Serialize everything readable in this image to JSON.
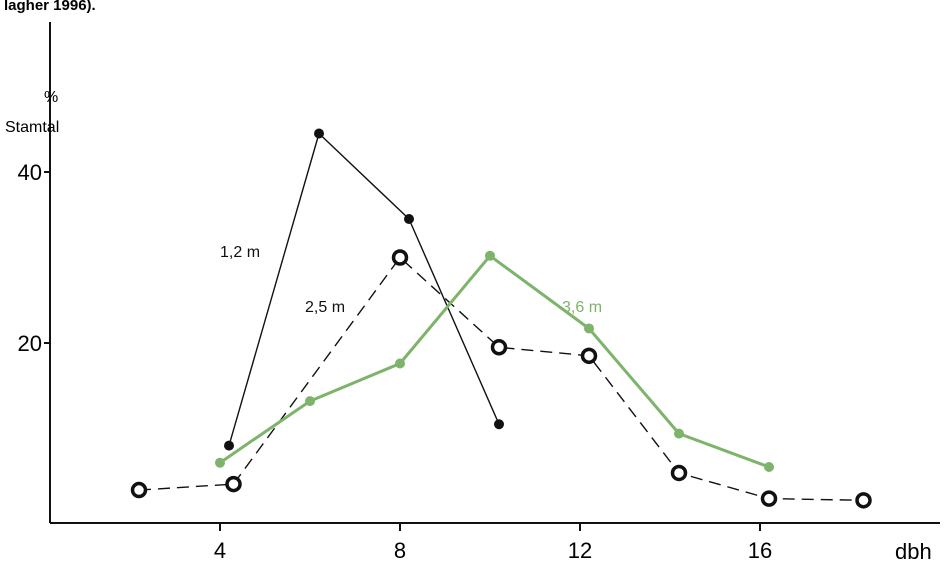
{
  "chart_data": {
    "type": "line",
    "title": "lagher 1996).",
    "xlabel": "dbh",
    "ylabel_unit": "%",
    "ylabel": "Stamtal",
    "xlim": [
      0,
      20
    ],
    "ylim": [
      0,
      50
    ],
    "x_ticks": [
      4,
      8,
      12,
      16
    ],
    "y_ticks": [
      20,
      40
    ],
    "grid": false,
    "series": [
      {
        "name": "1,2 m",
        "color": "#111111",
        "line_style": "solid",
        "marker": "filled-dot",
        "points": [
          {
            "x": 4.2,
            "y": 8
          },
          {
            "x": 6.2,
            "y": 44.5
          },
          {
            "x": 8.2,
            "y": 34.5
          },
          {
            "x": 10.2,
            "y": 10.5
          }
        ]
      },
      {
        "name": "2,5 m",
        "color": "#111111",
        "line_style": "dashed",
        "marker": "open-circle",
        "points": [
          {
            "x": 2.2,
            "y": 2.8
          },
          {
            "x": 4.3,
            "y": 3.5
          },
          {
            "x": 8.0,
            "y": 30
          },
          {
            "x": 10.2,
            "y": 19.5
          },
          {
            "x": 12.2,
            "y": 18.5
          },
          {
            "x": 14.2,
            "y": 4.8
          },
          {
            "x": 16.2,
            "y": 1.8
          },
          {
            "x": 18.3,
            "y": 1.6
          }
        ]
      },
      {
        "name": "3,6 m",
        "color": "#7db36a",
        "line_style": "solid",
        "marker": "filled-dot",
        "points": [
          {
            "x": 4.0,
            "y": 6
          },
          {
            "x": 6.0,
            "y": 13.2
          },
          {
            "x": 8.0,
            "y": 17.6
          },
          {
            "x": 10.0,
            "y": 30.2
          },
          {
            "x": 12.2,
            "y": 21.7
          },
          {
            "x": 14.2,
            "y": 9.4
          },
          {
            "x": 16.2,
            "y": 5.5
          }
        ]
      }
    ]
  }
}
